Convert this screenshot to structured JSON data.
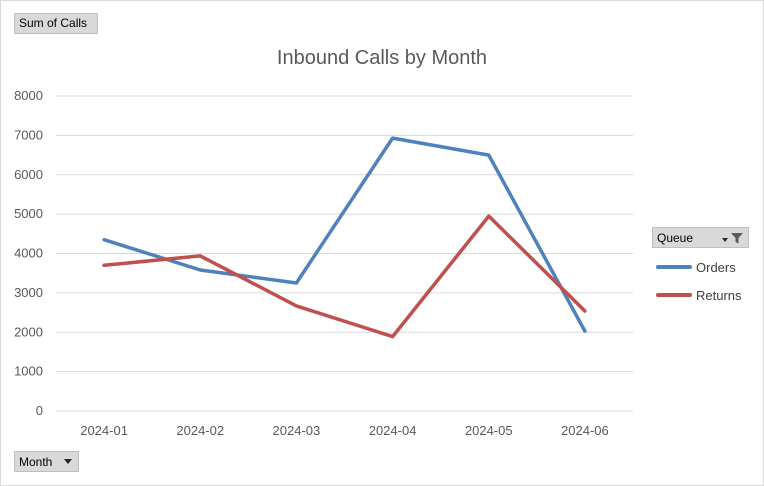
{
  "buttons": {
    "values_field": "Sum of Calls",
    "axis_field": "Month",
    "legend_field": "Queue"
  },
  "chart_data": {
    "type": "line",
    "title": "Inbound Calls by Month",
    "xlabel": "",
    "ylabel": "",
    "categories": [
      "2024-01",
      "2024-02",
      "2024-03",
      "2024-04",
      "2024-05",
      "2024-06"
    ],
    "ylim": [
      0,
      8000
    ],
    "yticks": [
      0,
      1000,
      2000,
      3000,
      4000,
      5000,
      6000,
      7000,
      8000
    ],
    "grid": true,
    "legend_position": "right",
    "series": [
      {
        "name": "Orders",
        "color": "#4f81bd",
        "values": [
          4350,
          3580,
          3250,
          6930,
          6500,
          2030
        ]
      },
      {
        "name": "Returns",
        "color": "#c0504d",
        "values": [
          3700,
          3940,
          2670,
          1890,
          4950,
          2540
        ]
      }
    ]
  }
}
